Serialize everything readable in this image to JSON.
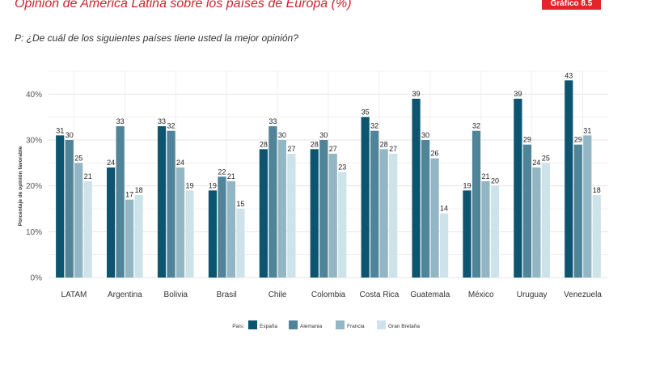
{
  "page": {
    "title": "Opinión de América Latina sobre los países de Europa (%)",
    "badge": "Gráfico 8.5",
    "question": "P: ¿De cuál de los siguientes países tiene usted la mejor opinión?"
  },
  "chart_data": {
    "type": "bar",
    "title": "",
    "xlabel": "",
    "ylabel": "Porcentaje de opinión favorable",
    "ylim": [
      0,
      45
    ],
    "yticks": [
      0,
      10,
      20,
      30,
      40
    ],
    "ytick_labels": [
      "0%",
      "10%",
      "20%",
      "30%",
      "40%"
    ],
    "grid": true,
    "legend_position": "bottom",
    "legend_title": "País:",
    "categories": [
      "LATAM",
      "Argentina",
      "Bolivia",
      "Brasil",
      "Chile",
      "Colombia",
      "Costa Rica",
      "Guatemala",
      "México",
      "Uruguay",
      "Venezuela"
    ],
    "series": [
      {
        "name": "España",
        "color": "#0c5470",
        "values": [
          31,
          24,
          33,
          19,
          28,
          28,
          35,
          39,
          19,
          39,
          43
        ]
      },
      {
        "name": "Alemania",
        "color": "#4f8499",
        "values": [
          30,
          33,
          32,
          22,
          33,
          30,
          32,
          30,
          32,
          29,
          29
        ]
      },
      {
        "name": "Francia",
        "color": "#92b6c4",
        "values": [
          25,
          17,
          24,
          21,
          30,
          27,
          28,
          26,
          21,
          24,
          31
        ]
      },
      {
        "name": "Gran Bretaña",
        "color": "#cde3e9",
        "values": [
          21,
          18,
          19,
          15,
          27,
          23,
          27,
          14,
          20,
          25,
          18
        ]
      }
    ]
  }
}
